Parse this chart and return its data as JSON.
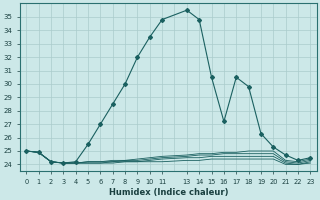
{
  "title": "",
  "xlabel": "Humidex (Indice chaleur)",
  "bg_color": "#cce8e8",
  "line_color": "#1a6060",
  "grid_color": "#aacccc",
  "xlim": [
    -0.5,
    23.5
  ],
  "ylim": [
    23.5,
    36.0
  ],
  "yticks": [
    24,
    25,
    26,
    27,
    28,
    29,
    30,
    31,
    32,
    33,
    34,
    35
  ],
  "xticks": [
    0,
    1,
    2,
    3,
    4,
    5,
    6,
    7,
    8,
    9,
    10,
    11,
    13,
    14,
    15,
    16,
    17,
    18,
    19,
    20,
    21,
    22,
    23
  ],
  "x_tick_labels": [
    "0",
    "1",
    "2",
    "3",
    "4",
    "5",
    "6",
    "7",
    "8",
    "9",
    "10",
    "11",
    "13",
    "14",
    "15",
    "16",
    "17",
    "18",
    "19",
    "20",
    "21",
    "22",
    "23"
  ],
  "main_x": [
    0,
    1,
    2,
    3,
    4,
    5,
    6,
    7,
    8,
    9,
    10,
    11,
    13,
    14,
    15,
    16,
    17,
    18,
    19,
    20,
    21,
    22,
    23
  ],
  "main_y": [
    25.0,
    24.9,
    24.2,
    24.1,
    24.2,
    25.5,
    27.0,
    28.5,
    30.0,
    32.0,
    33.5,
    34.8,
    35.5,
    34.8,
    30.5,
    27.2,
    30.5,
    29.8,
    26.3,
    25.3,
    24.7,
    24.3,
    24.5
  ],
  "flat_lines": [
    [
      25.0,
      24.9,
      24.2,
      24.1,
      24.1,
      24.2,
      24.2,
      24.3,
      24.3,
      24.4,
      24.5,
      24.6,
      24.7,
      24.8,
      24.8,
      24.9,
      24.9,
      25.0,
      25.0,
      25.0,
      24.3,
      24.2,
      24.4
    ],
    [
      25.0,
      24.9,
      24.2,
      24.1,
      24.1,
      24.2,
      24.2,
      24.2,
      24.3,
      24.3,
      24.4,
      24.5,
      24.6,
      24.7,
      24.7,
      24.8,
      24.8,
      24.8,
      24.8,
      24.8,
      24.2,
      24.1,
      24.3
    ],
    [
      25.0,
      24.9,
      24.2,
      24.1,
      24.1,
      24.1,
      24.1,
      24.2,
      24.2,
      24.2,
      24.3,
      24.4,
      24.5,
      24.5,
      24.6,
      24.6,
      24.6,
      24.6,
      24.6,
      24.6,
      24.1,
      24.0,
      24.2
    ],
    [
      25.0,
      24.9,
      24.2,
      24.1,
      24.1,
      24.1,
      24.1,
      24.1,
      24.2,
      24.2,
      24.2,
      24.2,
      24.3,
      24.3,
      24.4,
      24.4,
      24.4,
      24.4,
      24.4,
      24.4,
      24.0,
      24.0,
      24.1
    ]
  ]
}
